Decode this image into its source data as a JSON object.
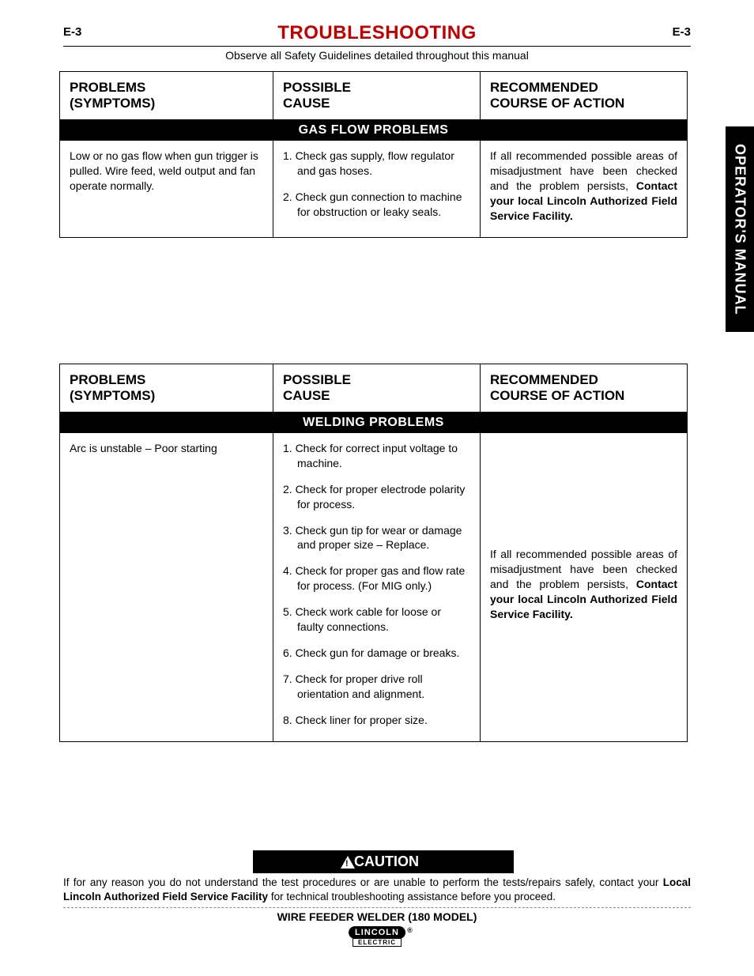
{
  "page": {
    "number_left": "E-3",
    "number_right": "E-3",
    "title": "TROUBLESHOOTING",
    "safety_line": "Observe all Safety Guidelines detailed throughout this manual",
    "side_tab": "OPERATOR'S MANUAL"
  },
  "headers": {
    "problems_line1": "PROBLEMS",
    "problems_line2": "(SYMPTOMS)",
    "cause_line1": "POSSIBLE",
    "cause_line2": "CAUSE",
    "rec_line1": "RECOMMENDED",
    "rec_line2": "COURSE OF ACTION"
  },
  "table1": {
    "section_title": "GAS FLOW PROBLEMS",
    "problem": "Low or no gas flow when gun trigger is pulled. Wire feed, weld output and fan operate normally.",
    "causes": [
      "1.  Check gas supply, flow regulator and gas hoses.",
      "2.  Check gun connection to machine for obstruction or leaky seals."
    ],
    "recommendation_plain": "If all recommended possible areas of misadjustment have been checked and the problem persists, ",
    "recommendation_bold": "Contact your local Lincoln Authorized Field Service Facility."
  },
  "table2": {
    "section_title": "WELDING PROBLEMS",
    "problem": "Arc is unstable – Poor starting",
    "causes": [
      "1.  Check for correct input voltage to machine.",
      "2.  Check for proper electrode polarity for process.",
      "3.  Check gun tip for wear or damage and proper size – Replace.",
      "4.  Check for proper gas and flow rate for process. (For MIG only.)",
      "5.  Check work cable for loose or faulty connections.",
      "6.  Check gun for damage or breaks.",
      "7.  Check for proper drive roll orientation and alignment.",
      "8.  Check liner for proper size."
    ],
    "recommendation_plain": "If all recommended possible areas of misadjustment have been checked and the problem persists, ",
    "recommendation_bold": "Contact your local Lincoln Authorized Field Service Facility."
  },
  "caution": {
    "label": "CAUTION",
    "text_plain": "If for any reason you do not understand the test procedures or are unable to perform the tests/repairs safely, contact your ",
    "text_bold": "Local  Lincoln Authorized Field Service Facility",
    "text_after": " for technical troubleshooting assistance before you proceed."
  },
  "footer": {
    "model": "WIRE FEEDER WELDER (180 MODEL)",
    "logo_main": "LINCOLN",
    "logo_reg": "®",
    "logo_sub": "ELECTRIC"
  }
}
